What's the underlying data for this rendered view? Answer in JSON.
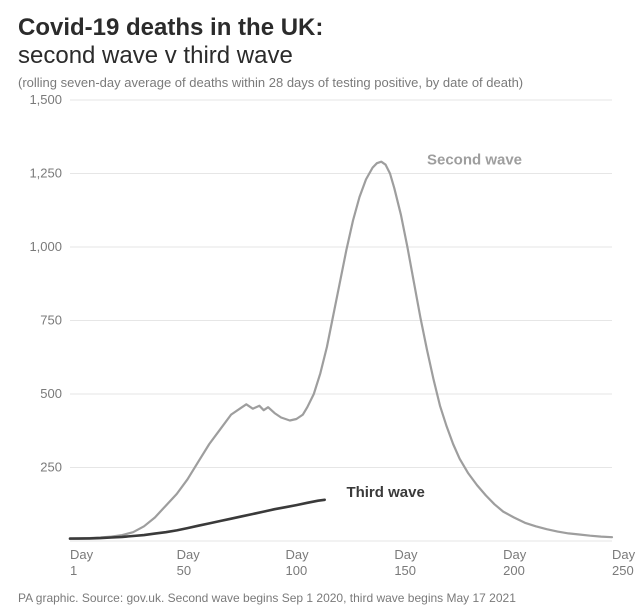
{
  "title_bold": "Covid-19 deaths in the UK:",
  "title_rest": "second wave v third wave",
  "subtitle": "(rolling seven-day average of deaths within 28 days of testing positive, by date of death)",
  "footer": "PA graphic. Source: gov.uk. Second wave begins Sep 1 2020, third wave begins May 17 2021",
  "chart": {
    "type": "line",
    "background_color": "#ffffff",
    "grid_color": "#e6e6e6",
    "axis_label_color": "#7a7a7a",
    "axis_fontsize": 13,
    "title_fontsize": 24,
    "subtitle_fontsize": 13,
    "footer_fontsize": 12,
    "xlim": [
      1,
      250
    ],
    "ylim": [
      0,
      1500
    ],
    "yticks": [
      250,
      500,
      750,
      1000,
      1250,
      1500
    ],
    "xticks": [
      1,
      50,
      100,
      150,
      200,
      250
    ],
    "xtick_prefix": "Day",
    "series": [
      {
        "name": "Second wave",
        "label": "Second wave",
        "color": "#9e9e9e",
        "line_width": 2.2,
        "label_color": "#9e9e9e",
        "label_x": 165,
        "label_y": 1280,
        "data": [
          [
            1,
            8
          ],
          [
            5,
            9
          ],
          [
            10,
            10
          ],
          [
            15,
            12
          ],
          [
            20,
            15
          ],
          [
            25,
            20
          ],
          [
            30,
            30
          ],
          [
            35,
            50
          ],
          [
            40,
            80
          ],
          [
            45,
            120
          ],
          [
            50,
            160
          ],
          [
            55,
            210
          ],
          [
            60,
            270
          ],
          [
            65,
            330
          ],
          [
            70,
            380
          ],
          [
            75,
            430
          ],
          [
            80,
            455
          ],
          [
            82,
            465
          ],
          [
            85,
            450
          ],
          [
            88,
            460
          ],
          [
            90,
            445
          ],
          [
            92,
            455
          ],
          [
            95,
            435
          ],
          [
            98,
            420
          ],
          [
            100,
            415
          ],
          [
            102,
            410
          ],
          [
            105,
            415
          ],
          [
            108,
            430
          ],
          [
            110,
            455
          ],
          [
            113,
            500
          ],
          [
            116,
            570
          ],
          [
            119,
            660
          ],
          [
            122,
            770
          ],
          [
            125,
            880
          ],
          [
            128,
            990
          ],
          [
            131,
            1090
          ],
          [
            134,
            1170
          ],
          [
            137,
            1230
          ],
          [
            140,
            1270
          ],
          [
            142,
            1285
          ],
          [
            144,
            1290
          ],
          [
            146,
            1280
          ],
          [
            148,
            1250
          ],
          [
            150,
            1200
          ],
          [
            153,
            1110
          ],
          [
            156,
            1000
          ],
          [
            159,
            880
          ],
          [
            162,
            760
          ],
          [
            165,
            650
          ],
          [
            168,
            550
          ],
          [
            171,
            460
          ],
          [
            174,
            390
          ],
          [
            177,
            330
          ],
          [
            180,
            280
          ],
          [
            184,
            230
          ],
          [
            188,
            190
          ],
          [
            192,
            155
          ],
          [
            196,
            125
          ],
          [
            200,
            100
          ],
          [
            205,
            80
          ],
          [
            210,
            62
          ],
          [
            215,
            50
          ],
          [
            220,
            40
          ],
          [
            225,
            32
          ],
          [
            230,
            26
          ],
          [
            235,
            22
          ],
          [
            240,
            18
          ],
          [
            245,
            15
          ],
          [
            250,
            13
          ]
        ]
      },
      {
        "name": "Third wave",
        "label": "Third wave",
        "color": "#3a3a3a",
        "line_width": 2.6,
        "label_color": "#3a3a3a",
        "label_x": 128,
        "label_y": 150,
        "data": [
          [
            1,
            8
          ],
          [
            5,
            8
          ],
          [
            10,
            9
          ],
          [
            15,
            10
          ],
          [
            20,
            12
          ],
          [
            25,
            14
          ],
          [
            30,
            17
          ],
          [
            35,
            20
          ],
          [
            40,
            25
          ],
          [
            45,
            30
          ],
          [
            50,
            36
          ],
          [
            55,
            44
          ],
          [
            60,
            52
          ],
          [
            65,
            60
          ],
          [
            70,
            68
          ],
          [
            75,
            76
          ],
          [
            80,
            84
          ],
          [
            85,
            92
          ],
          [
            90,
            100
          ],
          [
            95,
            108
          ],
          [
            100,
            115
          ],
          [
            105,
            122
          ],
          [
            110,
            130
          ],
          [
            115,
            137
          ],
          [
            118,
            140
          ]
        ]
      }
    ]
  }
}
